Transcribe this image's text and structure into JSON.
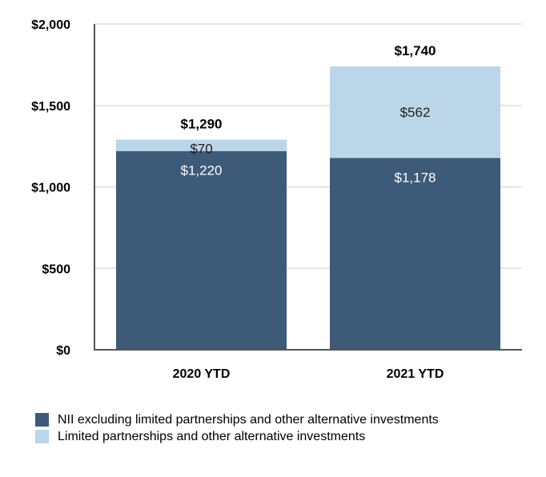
{
  "chart_data": {
    "type": "bar",
    "stacked": true,
    "title": "",
    "xlabel": "",
    "ylabel": "",
    "ylim": [
      0,
      2000
    ],
    "yticks": [
      0,
      500,
      1000,
      1500,
      2000
    ],
    "ytick_labels": [
      "$0",
      "$500",
      "$1,000",
      "$1,500",
      "$2,000"
    ],
    "categories": [
      "2020 YTD",
      "2021 YTD"
    ],
    "series": [
      {
        "name": "NII excluding limited partnerships and other alternative investments",
        "color": "#3d5a78",
        "label_color": "#ffffff",
        "values": [
          1220,
          1178
        ],
        "labels": [
          "$1,220",
          "$1,178"
        ]
      },
      {
        "name": "Limited partnerships and other alternative investments",
        "color": "#bad6e8",
        "label_color": "#222222",
        "values": [
          70,
          562
        ],
        "labels": [
          "$70",
          "$562"
        ]
      }
    ],
    "totals": [
      1290,
      1740
    ],
    "total_labels": [
      "$1,290",
      "$1,740"
    ],
    "legend_position": "bottom-left",
    "grid": true
  }
}
